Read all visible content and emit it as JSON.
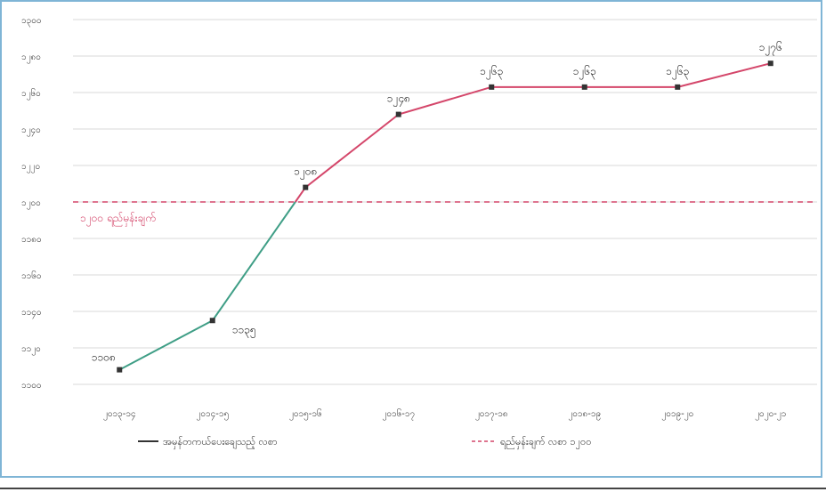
{
  "chart_data": {
    "type": "line",
    "title": "",
    "xlabel": "",
    "ylabel": "",
    "categories": [
      "၂၀၁၃-၁၄",
      "၂၀၁၄-၁၅",
      "၂၀၁၅-၁၆",
      "၂၀၁၆-၁၇",
      "၂၀၁၇-၁၈",
      "၂၀၁၈-၁၉",
      "၂၀၁၉-၂၀",
      "၂၀၂၀-၂၁"
    ],
    "yticks": [
      "၁၃၀၀",
      "၁၂၈၀",
      "၁၂၆၀",
      "၁၂၄၀",
      "၁၂၂၀",
      "၁၂၀၀",
      "၁၁၈၀",
      "၁၁၆၀",
      "၁၁၄၀",
      "၁၁၂၀",
      "၁၁၀၀"
    ],
    "ylim": [
      1100,
      1300
    ],
    "grid": true,
    "series": [
      {
        "name": "အမှန်တကယ်ပေးချေသည့် လစာ",
        "values": [
          1108,
          1135,
          1208,
          1248,
          1263,
          1263,
          1263,
          1276
        ],
        "labels": [
          "၁၁၀၈",
          "၁၁၃၅",
          "၁၂၀၈",
          "၁၂၄၈",
          "၁၂၆၃",
          "၁၂၆၃",
          "၁၂၆၃",
          "၁၂၇၆"
        ],
        "colors": {
          "below": "#3f9e86",
          "above": "#d4466a",
          "marker": "#333333"
        }
      }
    ],
    "reference": {
      "name": "ရည်မှန်းချက် လစာ ၁၂၀၀",
      "value": 1200,
      "label": "၁၂၀၀ ရည်မှန်းချက်",
      "color": "#d4466a"
    },
    "legend_position": "bottom"
  }
}
